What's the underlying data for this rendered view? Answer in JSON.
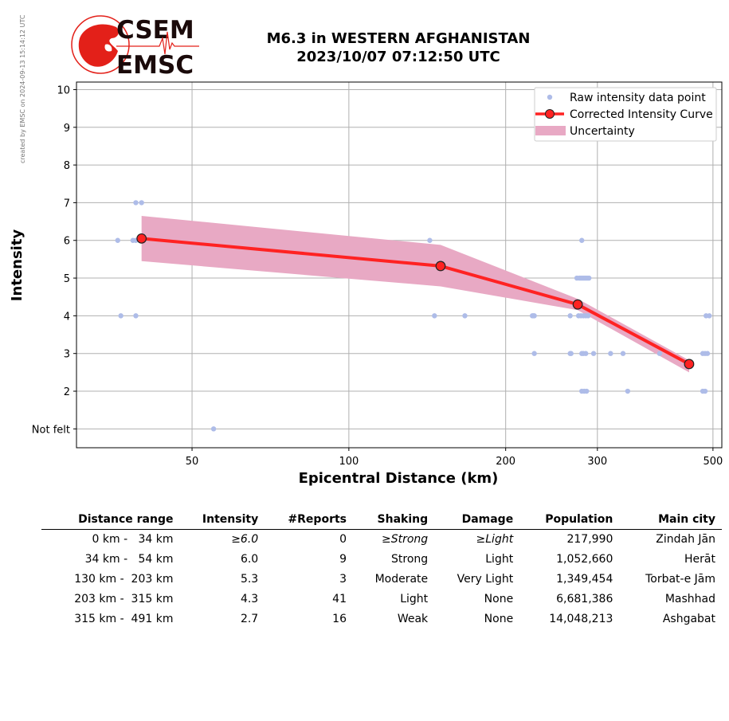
{
  "side_note": "created by EMSC on 2024-09-13 15:14:12 UTC",
  "logo": {
    "line1": "CSEM",
    "line2": "EMSC",
    "color": "#e32019"
  },
  "header": {
    "title_line1": "M6.3 in WESTERN AFGHANISTAN",
    "title_line2": "2023/10/07 07:12:50 UTC"
  },
  "chart_data": {
    "type": "scatter",
    "xlabel": "Epicentral Distance (km)",
    "ylabel": "Intensity",
    "x_scale": "log",
    "x_ticks": [
      50,
      100,
      200,
      300,
      500
    ],
    "xlim": [
      30,
      520
    ],
    "y_ticks": [
      1,
      2,
      3,
      4,
      5,
      6,
      7,
      8,
      9,
      10
    ],
    "y_tick_labels": [
      "Not felt",
      "2",
      "3",
      "4",
      "5",
      "6",
      "7",
      "8",
      "9",
      "10"
    ],
    "ylim": [
      0.5,
      10.2
    ],
    "grid": true,
    "legend_position": "top-right",
    "legend": [
      "Raw intensity data point",
      "Corrected Intensity Curve",
      "Uncertainty"
    ],
    "colors": {
      "raw": "#aebce8",
      "curve": "#ff2222",
      "marker_edge": "#222222",
      "band": "#e8a9c4",
      "grid": "#b0b0b0"
    },
    "raw_points": [
      {
        "x": 36,
        "y": 6
      },
      {
        "x": 38.5,
        "y": 6
      },
      {
        "x": 39,
        "y": 6
      },
      {
        "x": 39,
        "y": 7
      },
      {
        "x": 40,
        "y": 7
      },
      {
        "x": 36.5,
        "y": 4
      },
      {
        "x": 39,
        "y": 4
      },
      {
        "x": 55,
        "y": 1
      },
      {
        "x": 143,
        "y": 6
      },
      {
        "x": 146,
        "y": 4
      },
      {
        "x": 167,
        "y": 4
      },
      {
        "x": 225,
        "y": 4
      },
      {
        "x": 226,
        "y": 4
      },
      {
        "x": 227,
        "y": 4
      },
      {
        "x": 227,
        "y": 3
      },
      {
        "x": 266,
        "y": 4
      },
      {
        "x": 266,
        "y": 3
      },
      {
        "x": 267,
        "y": 3
      },
      {
        "x": 274,
        "y": 5
      },
      {
        "x": 277,
        "y": 5
      },
      {
        "x": 279,
        "y": 5
      },
      {
        "x": 281,
        "y": 5
      },
      {
        "x": 283,
        "y": 5
      },
      {
        "x": 285,
        "y": 5
      },
      {
        "x": 287,
        "y": 5
      },
      {
        "x": 289,
        "y": 5
      },
      {
        "x": 276,
        "y": 4
      },
      {
        "x": 279,
        "y": 4
      },
      {
        "x": 282,
        "y": 4
      },
      {
        "x": 285,
        "y": 4
      },
      {
        "x": 288,
        "y": 4
      },
      {
        "x": 280,
        "y": 6
      },
      {
        "x": 280,
        "y": 3
      },
      {
        "x": 282,
        "y": 3
      },
      {
        "x": 285,
        "y": 3
      },
      {
        "x": 295,
        "y": 3
      },
      {
        "x": 280,
        "y": 2
      },
      {
        "x": 283,
        "y": 2
      },
      {
        "x": 286,
        "y": 2
      },
      {
        "x": 318,
        "y": 3
      },
      {
        "x": 336,
        "y": 3
      },
      {
        "x": 395,
        "y": 3
      },
      {
        "x": 343,
        "y": 2
      },
      {
        "x": 485,
        "y": 4
      },
      {
        "x": 492,
        "y": 4
      },
      {
        "x": 478,
        "y": 3
      },
      {
        "x": 483,
        "y": 3
      },
      {
        "x": 488,
        "y": 3
      },
      {
        "x": 478,
        "y": 2
      },
      {
        "x": 483,
        "y": 2
      }
    ],
    "curve": {
      "x": [
        40,
        150,
        275,
        450
      ],
      "y": [
        6.05,
        5.32,
        4.3,
        2.72
      ]
    },
    "uncertainty": {
      "x": [
        40,
        150,
        275,
        450
      ],
      "upper": [
        6.65,
        5.88,
        4.45,
        2.82
      ],
      "lower": [
        5.45,
        4.78,
        4.15,
        2.5
      ]
    }
  },
  "table": {
    "headers": [
      "Distance range",
      "Intensity",
      "#Reports",
      "Shaking",
      "Damage",
      "Population",
      "Main city"
    ],
    "rows": [
      {
        "range": "0 km -   34 km",
        "intensity": "≥6.0",
        "reports": "0",
        "shaking": "≥Strong",
        "damage": "≥Light",
        "population": "217,990",
        "city": "Zindah Jān"
      },
      {
        "range": "34 km -   54 km",
        "intensity": "6.0",
        "reports": "9",
        "shaking": "Strong",
        "damage": "Light",
        "population": "1,052,660",
        "city": "Herāt"
      },
      {
        "range": "130 km -  203 km",
        "intensity": "5.3",
        "reports": "3",
        "shaking": "Moderate",
        "damage": "Very Light",
        "population": "1,349,454",
        "city": "Torbat-e Jām"
      },
      {
        "range": "203 km -  315 km",
        "intensity": "4.3",
        "reports": "41",
        "shaking": "Light",
        "damage": "None",
        "population": "6,681,386",
        "city": "Mashhad"
      },
      {
        "range": "315 km -  491 km",
        "intensity": "2.7",
        "reports": "16",
        "shaking": "Weak",
        "damage": "None",
        "population": "14,048,213",
        "city": "Ashgabat"
      }
    ]
  }
}
